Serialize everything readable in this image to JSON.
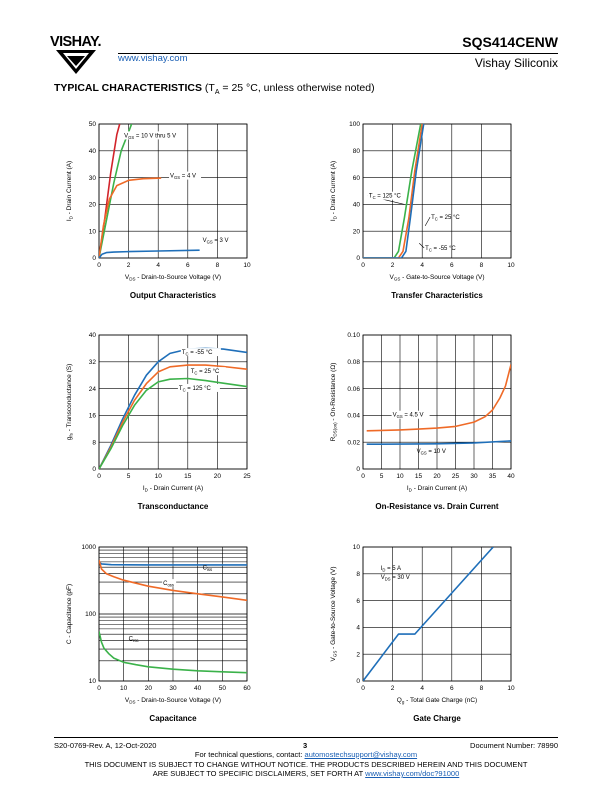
{
  "header": {
    "logo_text": "VISHAY.",
    "website": "www.vishay.com",
    "part_number": "SQS414CENW",
    "company": "Vishay Siliconix"
  },
  "section": {
    "title_bold": "TYPICAL CHARACTERISTICS",
    "title_rest_pre": " (T",
    "title_sub": "A",
    "title_rest_post": " = 25 °C, unless otherwise noted)"
  },
  "charts": {
    "output": {
      "caption": "Output Characteristics",
      "xlabel": "V_DS - Drain-to-Source Voltage (V)",
      "ylabel": "I_D - Drain Current (A)",
      "xticks": [
        "0",
        "2",
        "4",
        "6",
        "8",
        "10"
      ],
      "yticks": [
        "0",
        "10",
        "20",
        "30",
        "40",
        "50"
      ],
      "ann": [
        "V_GS = 10 V thru 5 V",
        "V_GS = 4 V",
        "V_GS = 3 V"
      ]
    },
    "transfer": {
      "caption": "Transfer Characteristics",
      "xlabel": "V_GS - Gate-to-Source Voltage (V)",
      "ylabel": "I_D - Drain Current (A)",
      "xticks": [
        "0",
        "2",
        "4",
        "6",
        "8",
        "10"
      ],
      "yticks": [
        "0",
        "20",
        "40",
        "60",
        "80",
        "100"
      ],
      "ann": [
        "T_C = 125 °C",
        "T_C = 25 °C",
        "T_C = -55 °C"
      ]
    },
    "transconductance": {
      "caption": "Transconductance",
      "xlabel": "I_D - Drain Current (A)",
      "ylabel": "g_fs - Transconductance (S)",
      "xticks": [
        "0",
        "5",
        "10",
        "15",
        "20",
        "25"
      ],
      "yticks": [
        "0",
        "8",
        "16",
        "24",
        "32",
        "40"
      ],
      "ann": [
        "T_C = -55 °C",
        "T_C = 25 °C",
        "T_C = 125 °C"
      ]
    },
    "onres": {
      "caption": "On-Resistance vs. Drain Current",
      "xlabel": "I_D - Drain Current (A)",
      "ylabel": "R_DS(on) - On-Resistance (Ω)",
      "xticks": [
        "0",
        "5",
        "10",
        "15",
        "20",
        "25",
        "30",
        "35",
        "40"
      ],
      "yticks": [
        "0",
        "0.02",
        "0.04",
        "0.06",
        "0.08",
        "0.10"
      ],
      "ann": [
        "V_GS = 4.5 V",
        "V_GS = 10 V"
      ]
    },
    "capacitance": {
      "caption": "Capacitance",
      "xlabel": "V_DS - Drain-to-Source Voltage (V)",
      "ylabel": "C - Capacitance (pF)",
      "xticks": [
        "0",
        "10",
        "20",
        "30",
        "40",
        "50",
        "60"
      ],
      "yticks": [
        "10",
        "100",
        "1000"
      ],
      "ann": [
        "C_iss",
        "C_oss",
        "C_rss"
      ]
    },
    "gatecharge": {
      "caption": "Gate Charge",
      "xlabel": "Q_g - Total Gate Charge (nC)",
      "ylabel": "V_GS - Gate-to-Source Voltage (V)",
      "xticks": [
        "0",
        "2",
        "4",
        "6",
        "8",
        "10"
      ],
      "yticks": [
        "0",
        "2",
        "4",
        "6",
        "8",
        "10"
      ],
      "ann": [
        "I_D = 5 A",
        "V_DS = 30 V"
      ]
    }
  },
  "colors": {
    "blue": "#1f6fb9",
    "orange": "#ef6a27",
    "green": "#3bb24a",
    "red": "#d2232a",
    "black": "#000000"
  },
  "chart_data": [
    {
      "type": "line",
      "title": "Output Characteristics",
      "xlabel": "VDS - Drain-to-Source Voltage (V)",
      "ylabel": "ID - Drain Current (A)",
      "xlim": [
        0,
        10
      ],
      "ylim": [
        0,
        50
      ],
      "series": [
        {
          "name": "VGS = 10 V thru 5 V",
          "color": "#d2232a",
          "x": [
            0,
            0.4,
            0.8,
            1.2,
            1.4
          ],
          "y": [
            0,
            15,
            32,
            46,
            50
          ]
        },
        {
          "name": "VGS = 10 V thru 5 V",
          "color": "#3bb24a",
          "x": [
            0,
            0.5,
            1.0,
            1.5,
            2.0,
            2.2
          ],
          "y": [
            0,
            14,
            28,
            40,
            47,
            50
          ]
        },
        {
          "name": "VGS = 4 V",
          "color": "#ef6a27",
          "x": [
            0,
            0.3,
            0.7,
            1.2,
            2.0,
            3.0,
            4.2
          ],
          "y": [
            0,
            12,
            22,
            27,
            29,
            29.6,
            29.8
          ]
        },
        {
          "name": "VGS = 3 V",
          "color": "#1f6fb9",
          "x": [
            0,
            0.2,
            0.5,
            1.0,
            2.0,
            4.0,
            6.8
          ],
          "y": [
            0,
            1.4,
            2.0,
            2.2,
            2.4,
            2.6,
            2.9
          ]
        }
      ]
    },
    {
      "type": "line",
      "title": "Transfer Characteristics",
      "xlabel": "VGS - Gate-to-Source Voltage (V)",
      "ylabel": "ID - Drain Current (A)",
      "xlim": [
        0,
        10
      ],
      "ylim": [
        0,
        100
      ],
      "series": [
        {
          "name": "TC = 125 °C",
          "color": "#3bb24a",
          "x": [
            0,
            2.1,
            2.4,
            2.8,
            3.3,
            3.9
          ],
          "y": [
            0,
            0,
            5,
            30,
            65,
            100
          ]
        },
        {
          "name": "TC = 25 °C",
          "color": "#ef6a27",
          "x": [
            0,
            2.4,
            2.7,
            3.1,
            3.5,
            4.0
          ],
          "y": [
            0,
            0,
            5,
            30,
            65,
            100
          ]
        },
        {
          "name": "TC = -55 °C",
          "color": "#1f6fb9",
          "x": [
            0,
            2.6,
            2.9,
            3.2,
            3.6,
            4.1
          ],
          "y": [
            0,
            0,
            5,
            30,
            65,
            100
          ]
        }
      ]
    },
    {
      "type": "line",
      "title": "Transconductance",
      "xlabel": "ID - Drain Current (A)",
      "ylabel": "gfs - Transconductance (S)",
      "xlim": [
        0,
        25
      ],
      "ylim": [
        0,
        40
      ],
      "series": [
        {
          "name": "TC = -55 °C",
          "color": "#1f6fb9",
          "x": [
            0,
            2,
            4,
            6,
            8,
            10,
            12,
            15,
            18,
            21,
            25
          ],
          "y": [
            0,
            7,
            15,
            22,
            28,
            32,
            34.5,
            35.8,
            36,
            35.8,
            34.8
          ]
        },
        {
          "name": "TC = 25 °C",
          "color": "#ef6a27",
          "x": [
            0,
            2,
            4,
            6,
            8,
            10,
            12,
            15,
            18,
            21,
            25
          ],
          "y": [
            0,
            6.5,
            14,
            20.5,
            25.5,
            29,
            30.5,
            31,
            31,
            30.6,
            29.8
          ]
        },
        {
          "name": "TC = 125 °C",
          "color": "#3bb24a",
          "x": [
            0,
            2,
            4,
            6,
            8,
            10,
            12,
            15,
            18,
            21,
            25
          ],
          "y": [
            0,
            6,
            13,
            19,
            23.5,
            26,
            26.8,
            27,
            26.4,
            25.6,
            24.6
          ]
        }
      ]
    },
    {
      "type": "line",
      "title": "On-Resistance vs. Drain Current",
      "xlabel": "ID - Drain Current (A)",
      "ylabel": "RDS(on) - On-Resistance (Ω)",
      "xlim": [
        0,
        40
      ],
      "ylim": [
        0,
        0.1
      ],
      "series": [
        {
          "name": "VGS = 4.5 V",
          "color": "#ef6a27",
          "x": [
            1,
            5,
            10,
            15,
            20,
            25,
            30,
            33,
            35,
            37,
            38.5,
            40
          ],
          "y": [
            0.0285,
            0.0288,
            0.0292,
            0.0298,
            0.0305,
            0.0318,
            0.035,
            0.039,
            0.044,
            0.053,
            0.062,
            0.078
          ]
        },
        {
          "name": "VGS = 10 V",
          "color": "#1f6fb9",
          "x": [
            1,
            10,
            20,
            30,
            40
          ],
          "y": [
            0.0185,
            0.0186,
            0.0188,
            0.0195,
            0.021
          ]
        }
      ]
    },
    {
      "type": "line",
      "title": "Capacitance",
      "xlabel": "VDS - Drain-to-Source Voltage (V)",
      "ylabel": "C - Capacitance (pF)",
      "xlim": [
        0,
        60
      ],
      "ylim": [
        10,
        1000
      ],
      "yscale": "log",
      "series": [
        {
          "name": "Ciss",
          "color": "#1f6fb9",
          "x": [
            0,
            1,
            5,
            20,
            40,
            60
          ],
          "y": [
            600,
            560,
            545,
            540,
            540,
            540
          ]
        },
        {
          "name": "Coss",
          "color": "#ef6a27",
          "x": [
            0,
            1,
            3,
            6,
            10,
            20,
            30,
            40,
            50,
            60
          ],
          "y": [
            640,
            470,
            400,
            360,
            320,
            260,
            225,
            200,
            180,
            160
          ]
        },
        {
          "name": "Crss",
          "color": "#3bb24a",
          "x": [
            0,
            1,
            2,
            4,
            6,
            10,
            15,
            20,
            30,
            40,
            50,
            60
          ],
          "y": [
            55,
            38,
            31,
            25.5,
            22,
            19,
            17.5,
            16.3,
            15,
            14.2,
            13.7,
            13.3
          ]
        }
      ]
    },
    {
      "type": "line",
      "title": "Gate Charge",
      "xlabel": "Qg - Total Gate Charge (nC)",
      "ylabel": "VGS - Gate-to-Source Voltage (V)",
      "xlim": [
        0,
        10
      ],
      "ylim": [
        0,
        10
      ],
      "series": [
        {
          "name": "ID = 5 A, VDS = 30 V",
          "color": "#1f6fb9",
          "x": [
            0,
            2.4,
            3.5,
            8.8
          ],
          "y": [
            0,
            3.5,
            3.5,
            10
          ]
        }
      ]
    }
  ],
  "footer": {
    "doc_rev": "S20-0769-Rev. A, 12-Oct-2020",
    "page": "3",
    "doc_number": "Document Number: 78990",
    "tech_pre": "For technical questions, contact: ",
    "tech_email": "automostechsupport@vishay.com",
    "disclaimer1": "THIS DOCUMENT IS SUBJECT TO CHANGE WITHOUT NOTICE. THE PRODUCTS DESCRIBED HEREIN AND THIS DOCUMENT",
    "disclaimer2_pre": "ARE SUBJECT TO SPECIFIC DISCLAIMERS, SET FORTH AT ",
    "disclaimer2_link": "www.vishay.com/doc?91000"
  }
}
